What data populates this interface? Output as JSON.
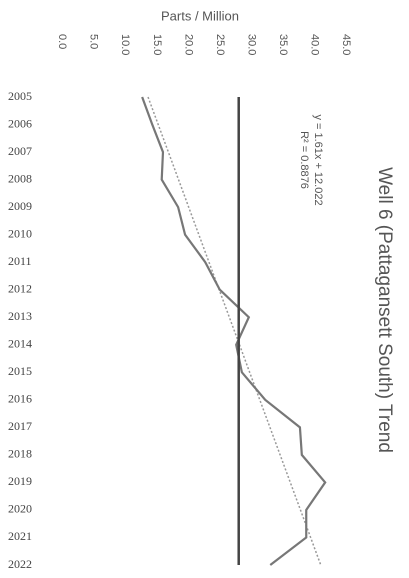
{
  "chart_data": {
    "type": "line",
    "title": "Well 6 (Pattagansett South) Trend",
    "x_label": "Parts / Million",
    "categories": [
      "2005",
      "2006",
      "2007",
      "2008",
      "2009",
      "2010",
      "2011",
      "2012",
      "2013",
      "2014",
      "2015",
      "2016",
      "2017",
      "2018",
      "2019",
      "2020",
      "2021",
      "2022"
    ],
    "series": [
      {
        "color": "#777777",
        "values": [
          12.7,
          14.3,
          16.0,
          15.8,
          18.4,
          19.5,
          22.7,
          25.0,
          29.6,
          27.6,
          28.5,
          32.2,
          37.7,
          38.0,
          41.7,
          38.7,
          38.7,
          33.0
        ]
      },
      {
        "color": "#444444",
        "values": [
          28,
          28,
          28,
          28,
          28,
          28,
          28,
          28,
          28,
          28,
          28,
          28,
          28,
          28,
          28,
          28,
          28,
          28
        ]
      }
    ],
    "trendline": {
      "slope": 1.61,
      "intercept": 12.022,
      "color": "#999999"
    },
    "annotations": [
      "y = 1.61x + 12.022",
      "R² = 0.8876"
    ],
    "xlim": [
      0,
      45
    ],
    "xticks": [
      {
        "value": 0,
        "label": "0.0"
      },
      {
        "value": 5,
        "label": "5.0"
      },
      {
        "value": 10,
        "label": "10.0"
      },
      {
        "value": 15,
        "label": "15.0"
      },
      {
        "value": 20,
        "label": "20.0"
      },
      {
        "value": 25,
        "label": "25.0"
      },
      {
        "value": 30,
        "label": "30.0"
      },
      {
        "value": 35,
        "label": "35.0"
      },
      {
        "value": 40,
        "label": "40.0"
      },
      {
        "value": 45,
        "label": "45.0"
      }
    ]
  }
}
